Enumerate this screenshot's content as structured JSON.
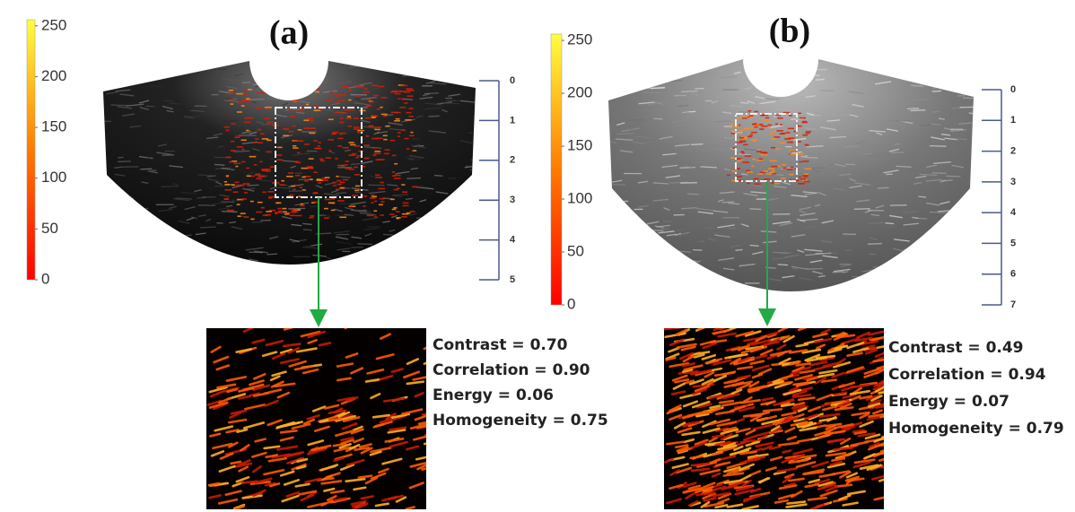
{
  "panels": [
    {
      "label": "(a)",
      "colorbar": {
        "range": [
          0,
          256
        ],
        "ticks": [
          0,
          50,
          100,
          150,
          200,
          250
        ]
      },
      "depth_scale": {
        "range": [
          0,
          5
        ],
        "ticks": [
          0,
          1,
          2,
          3,
          4,
          5
        ]
      },
      "metrics": [
        "Contrast = 0.70",
        "Correlation = 0.90",
        "Energy = 0.06",
        "Homogeneity = 0.75"
      ]
    },
    {
      "label": "(b)",
      "colorbar": {
        "range": [
          0,
          256
        ],
        "ticks": [
          0,
          50,
          100,
          150,
          200,
          250
        ]
      },
      "depth_scale": {
        "range": [
          0,
          7
        ],
        "ticks": [
          0,
          1,
          2,
          3,
          4,
          5,
          6,
          7
        ]
      },
      "metrics": [
        "Contrast = 0.49",
        "Correlation = 0.94",
        "Energy = 0.07",
        "Homogeneity = 0.79"
      ]
    }
  ]
}
